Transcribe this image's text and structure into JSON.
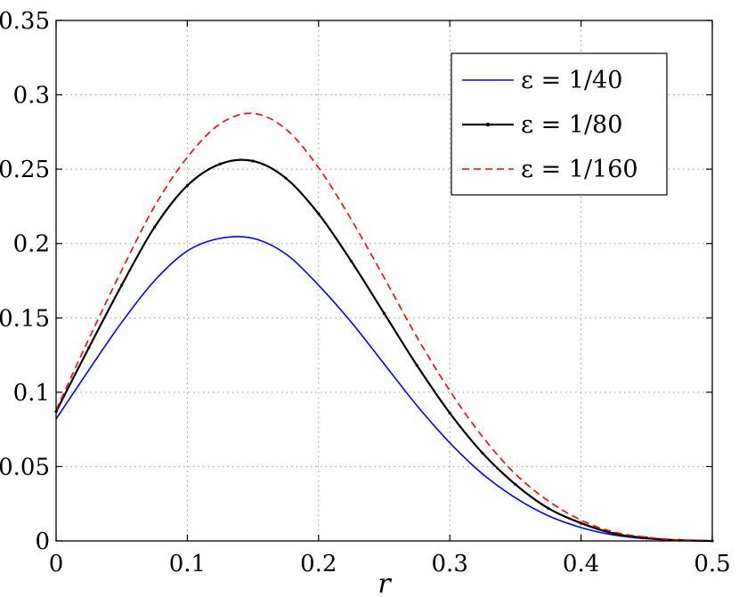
{
  "chart_data": {
    "type": "line",
    "title": "",
    "xlabel": "r",
    "ylabel": "",
    "xlim": [
      0,
      0.5
    ],
    "ylim": [
      0,
      0.35
    ],
    "grid": true,
    "legend_position": "top-right",
    "x_ticks": [
      "0",
      "0.1",
      "0.2",
      "0.3",
      "0.4",
      "0.5"
    ],
    "y_ticks": [
      "0",
      "0.05",
      "0.1",
      "0.15",
      "0.2",
      "0.25",
      "0.3",
      "0.35"
    ],
    "x": [
      0,
      0.025,
      0.05,
      0.075,
      0.1,
      0.125,
      0.15,
      0.175,
      0.2,
      0.225,
      0.25,
      0.275,
      0.3,
      0.325,
      0.35,
      0.375,
      0.4,
      0.425,
      0.45,
      0.475,
      0.5
    ],
    "series": [
      {
        "name": "ε = 1/40",
        "color": "#0000ff",
        "style": "solid",
        "values": [
          0.082,
          0.115,
          0.147,
          0.175,
          0.195,
          0.2035,
          0.2035,
          0.193,
          0.172,
          0.147,
          0.119,
          0.091,
          0.066,
          0.045,
          0.029,
          0.017,
          0.009,
          0.004,
          0.0015,
          0.0004,
          0.0
        ]
      },
      {
        "name": "ε = 1/80",
        "color": "#000000",
        "style": "solid-marker",
        "values": [
          0.087,
          0.13,
          0.172,
          0.211,
          0.239,
          0.2535,
          0.2555,
          0.244,
          0.22,
          0.188,
          0.153,
          0.118,
          0.086,
          0.059,
          0.038,
          0.022,
          0.012,
          0.005,
          0.002,
          0.0005,
          0.0
        ]
      },
      {
        "name": "ε = 1/160",
        "color": "#ff0000",
        "style": "dashed",
        "values": [
          0.088,
          0.136,
          0.182,
          0.225,
          0.258,
          0.2805,
          0.2875,
          0.277,
          0.251,
          0.216,
          0.177,
          0.137,
          0.101,
          0.07,
          0.045,
          0.027,
          0.014,
          0.006,
          0.0025,
          0.0006,
          0.0
        ]
      }
    ]
  }
}
